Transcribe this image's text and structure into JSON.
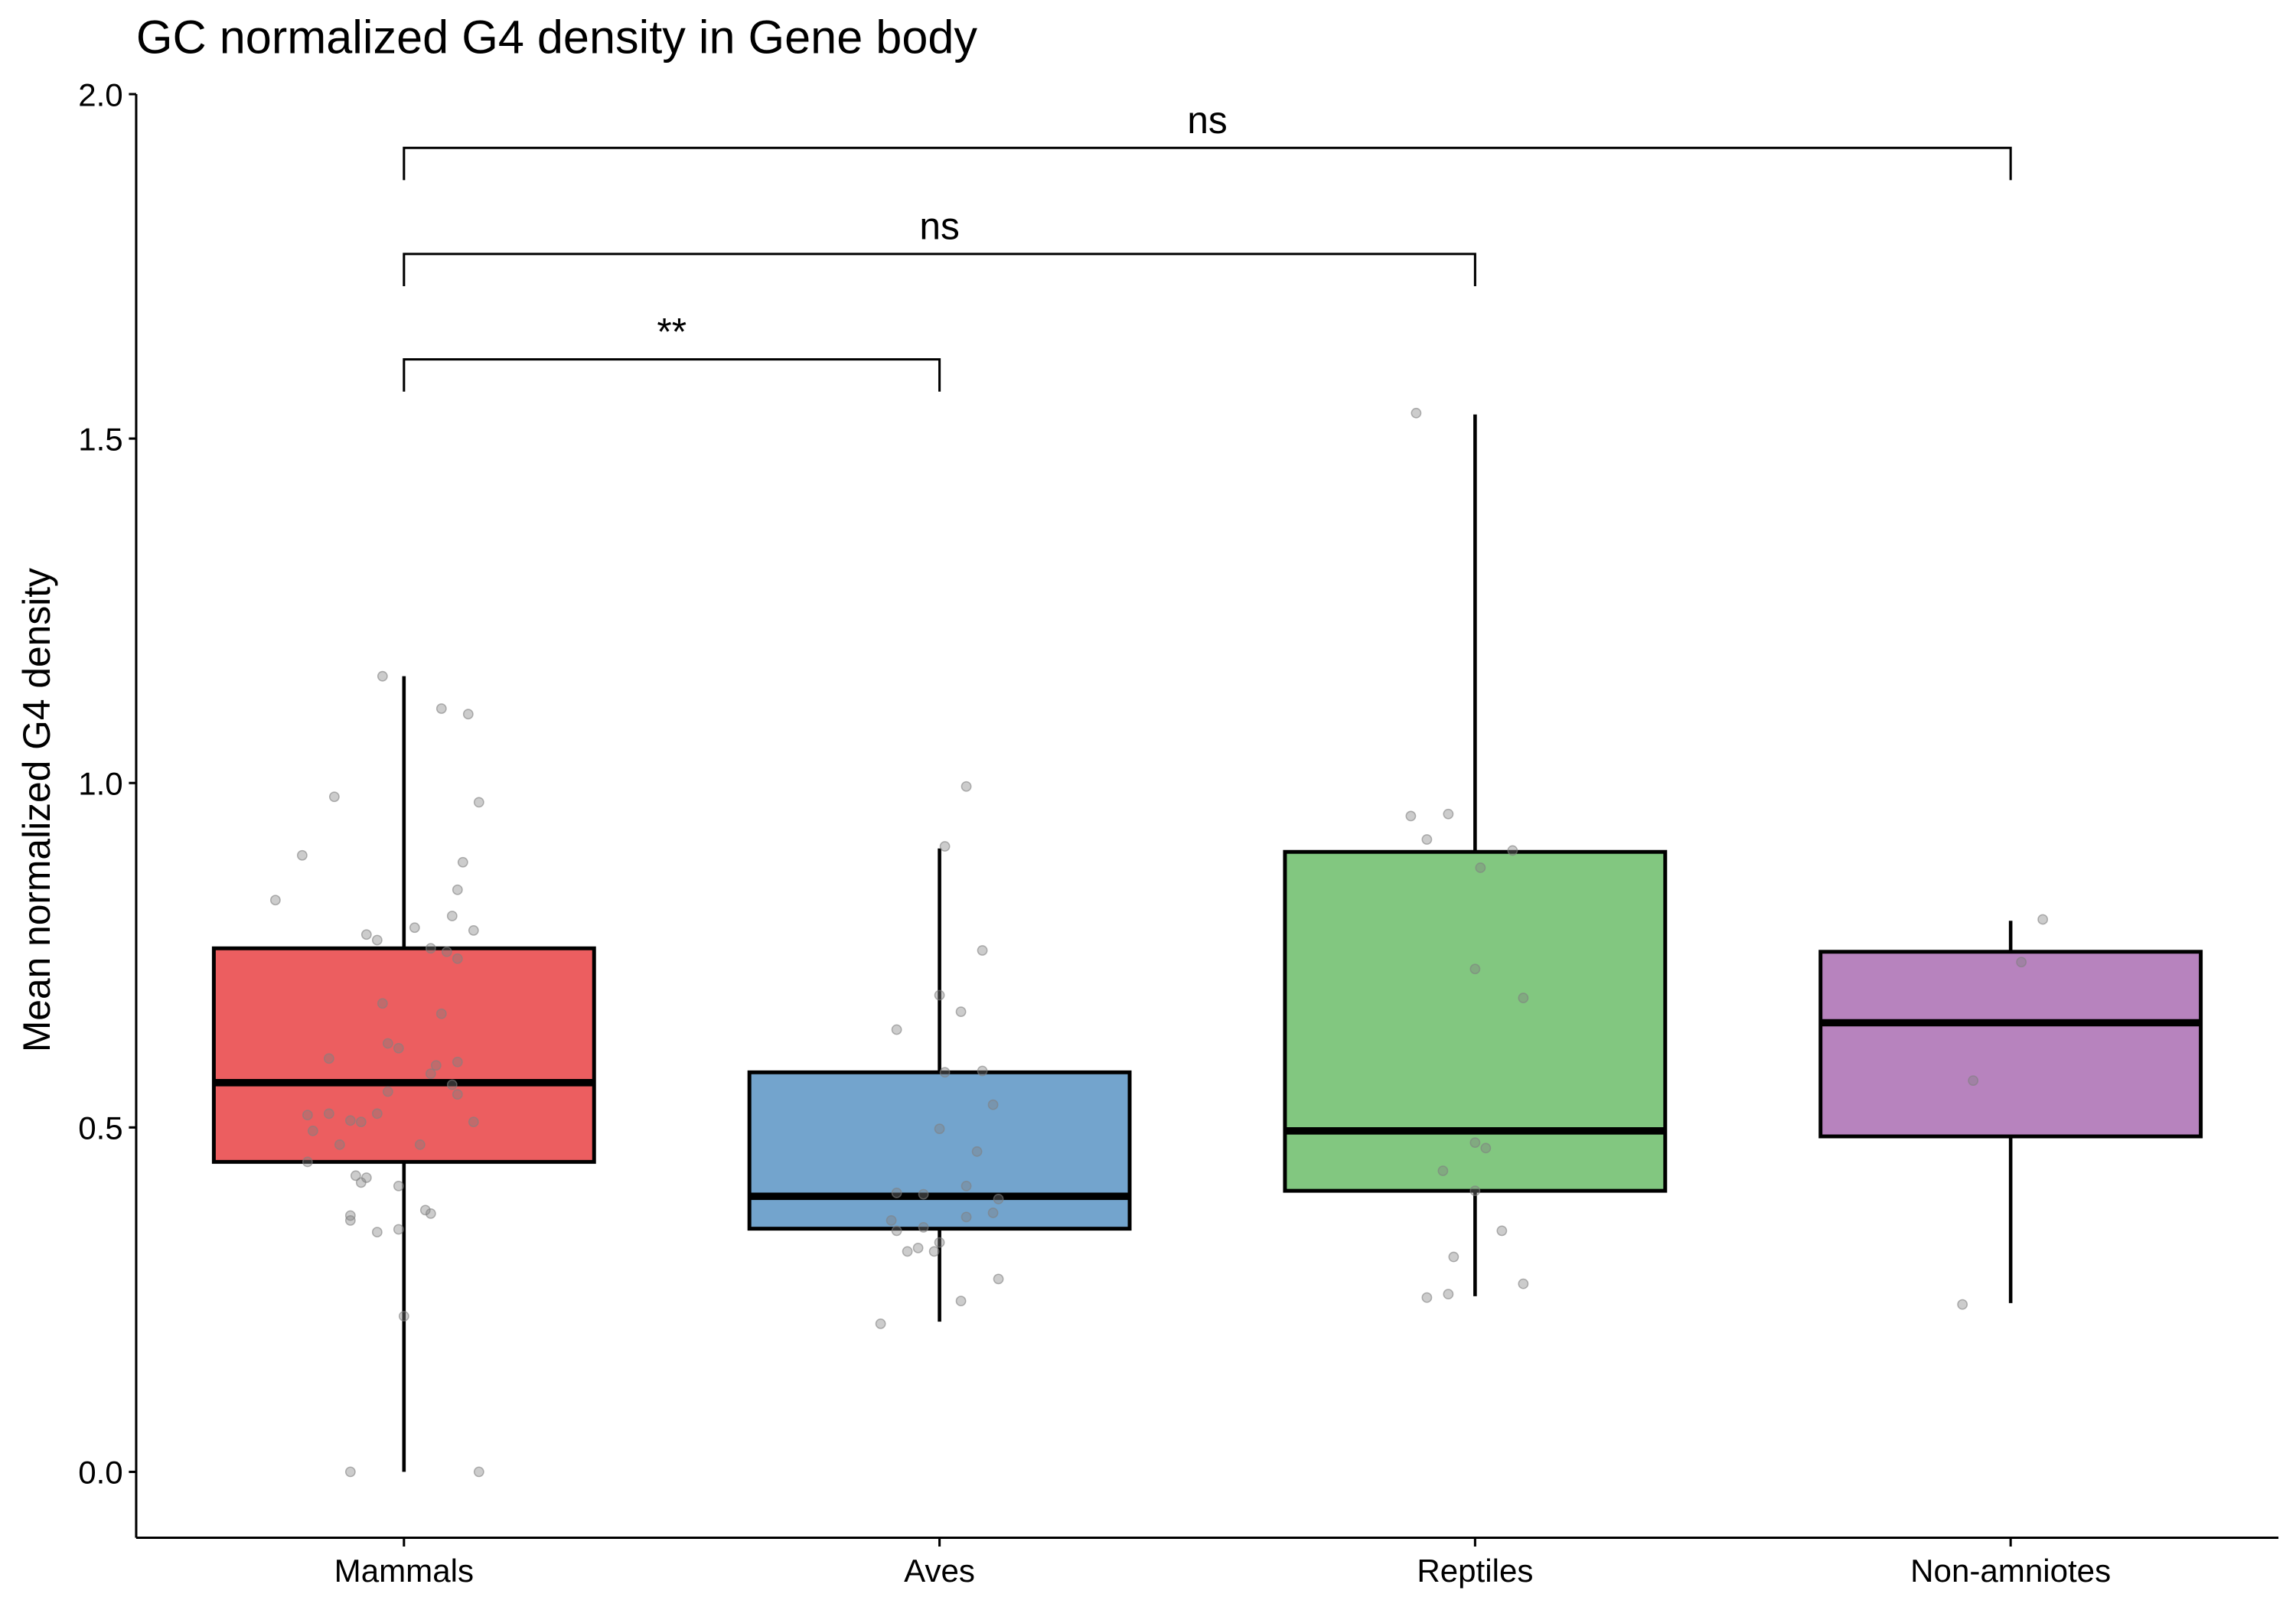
{
  "chart_data": {
    "type": "box",
    "title": "GC normalized G4 density in Gene body",
    "xlabel": "",
    "ylabel": "Mean normalized G4 density",
    "ylim": [
      -0.095,
      2.02
    ],
    "yticks": [
      0.0,
      0.5,
      1.0,
      1.5,
      2.0
    ],
    "ytick_labels": [
      "0.0",
      "0.5",
      "1.0",
      "1.5",
      "2.0"
    ],
    "grid": false,
    "legend": "none",
    "categories": [
      "Mammals",
      "Aves",
      "Reptiles",
      "Non-amniotes"
    ],
    "colors": [
      "#E41A1C",
      "#377EB8",
      "#4DAF4A",
      "#984EA3"
    ],
    "fill_opacity": 0.7,
    "point_color": "#808080",
    "boxes": [
      {
        "category": "Mammals",
        "whisker_low": 0.0,
        "q1": 0.45,
        "median": 0.565,
        "q3": 0.76,
        "whisker_high": 1.155
      },
      {
        "category": "Aves",
        "whisker_low": 0.218,
        "q1": 0.353,
        "median": 0.4,
        "q3": 0.58,
        "whisker_high": 0.905
      },
      {
        "category": "Reptiles",
        "whisker_low": 0.255,
        "q1": 0.408,
        "median": 0.495,
        "q3": 0.9,
        "whisker_high": 1.535
      },
      {
        "category": "Non-amniotes",
        "whisker_low": 0.245,
        "q1": 0.487,
        "median": 0.652,
        "q3": 0.755,
        "whisker_high": 0.8
      }
    ],
    "points": [
      {
        "category": "Mammals",
        "jitter": [
          -0.04,
          0.07,
          0.12,
          -0.13,
          0.14,
          -0.19,
          0.11,
          -0.24,
          0.1,
          -0.07,
          0.09,
          0.02,
          -0.05,
          0.13,
          0.08,
          0.1,
          0.05,
          -0.04,
          0.07,
          -0.03,
          -0.01,
          -0.14,
          0.1,
          0.06,
          0.05,
          0.09,
          -0.18,
          -0.1,
          -0.05,
          -0.08,
          0.13,
          -0.17,
          -0.14,
          -0.12,
          0.03,
          0.1,
          -0.03,
          -0.18,
          -0.09,
          -0.01,
          -0.07,
          -0.08,
          -0.1,
          0.05,
          0.04,
          -0.01,
          -0.05,
          -0.1,
          0.0,
          -0.1,
          0.14
        ],
        "values": [
          1.155,
          1.108,
          1.1,
          0.98,
          0.972,
          0.895,
          0.885,
          0.83,
          0.845,
          0.78,
          0.807,
          0.79,
          0.772,
          0.786,
          0.755,
          0.745,
          0.76,
          0.68,
          0.665,
          0.622,
          0.615,
          0.6,
          0.595,
          0.59,
          0.578,
          0.562,
          0.518,
          0.51,
          0.52,
          0.508,
          0.508,
          0.495,
          0.52,
          0.475,
          0.475,
          0.548,
          0.552,
          0.45,
          0.43,
          0.415,
          0.427,
          0.42,
          0.372,
          0.375,
          0.38,
          0.352,
          0.348,
          0.365,
          0.226,
          0.0,
          0.0
        ]
      },
      {
        "category": "Aves",
        "jitter": [
          0.05,
          0.01,
          0.08,
          0.0,
          0.04,
          -0.08,
          0.01,
          0.08,
          0.1,
          0.0,
          0.07,
          -0.08,
          -0.03,
          0.1,
          -0.09,
          -0.03,
          0.05,
          0.05,
          0.11,
          -0.06,
          -0.01,
          0.0,
          -0.08,
          -0.04,
          0.11,
          0.04,
          -0.11
        ],
        "values": [
          0.995,
          0.908,
          0.757,
          0.692,
          0.668,
          0.642,
          0.58,
          0.582,
          0.533,
          0.498,
          0.465,
          0.405,
          0.403,
          0.376,
          0.365,
          0.355,
          0.37,
          0.415,
          0.396,
          0.32,
          0.32,
          0.333,
          0.35,
          0.325,
          0.28,
          0.248,
          0.215
        ]
      },
      {
        "category": "Reptiles",
        "jitter": [
          -0.11,
          -0.12,
          -0.05,
          -0.09,
          0.07,
          0.01,
          0.0,
          0.09,
          0.0,
          0.02,
          -0.06,
          0.0,
          -0.04,
          0.05,
          -0.05,
          -0.09,
          0.09
        ],
        "values": [
          1.537,
          0.952,
          0.955,
          0.918,
          0.902,
          0.877,
          0.73,
          0.688,
          0.478,
          0.47,
          0.437,
          0.408,
          0.312,
          0.35,
          0.258,
          0.253,
          0.273
        ]
      },
      {
        "category": "Non-amniotes",
        "jitter": [
          0.06,
          0.02,
          -0.07,
          -0.09
        ],
        "values": [
          0.802,
          0.74,
          0.568,
          0.243
        ]
      }
    ],
    "comparisons": [
      {
        "from": "Mammals",
        "to": "Aves",
        "y": 1.615,
        "label": "**"
      },
      {
        "from": "Mammals",
        "to": "Reptiles",
        "y": 1.768,
        "label": "ns"
      },
      {
        "from": "Mammals",
        "to": "Non-amniotes",
        "y": 1.922,
        "label": "ns"
      }
    ]
  }
}
